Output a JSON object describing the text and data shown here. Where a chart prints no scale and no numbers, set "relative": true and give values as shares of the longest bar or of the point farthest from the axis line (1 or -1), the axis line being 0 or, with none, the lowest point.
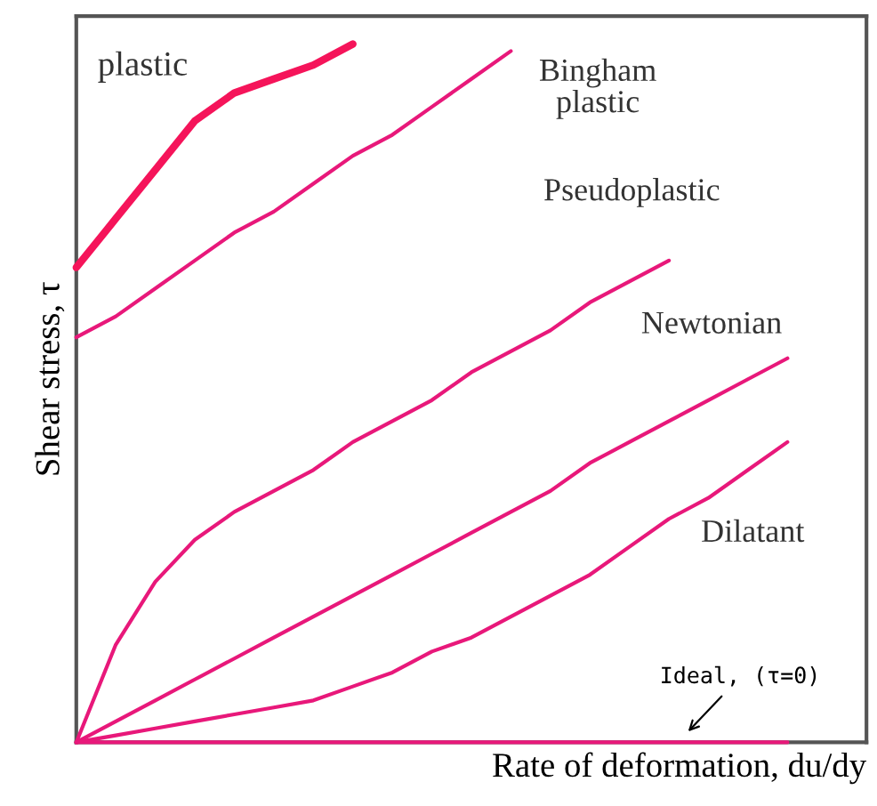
{
  "chart_data": {
    "type": "line",
    "relative": true,
    "xlabel": "Rate of deformation, du/dy",
    "ylabel": "Shear stress, τ",
    "tick_labels": false,
    "marker": "none",
    "line_style": "solid",
    "categories": [
      null,
      null,
      null,
      null,
      null,
      null,
      null,
      null,
      null,
      null,
      null,
      null,
      null,
      null,
      null,
      null,
      null,
      null,
      null,
      null,
      null
    ],
    "series": [
      {
        "name": "plastic",
        "color": "#f5145a",
        "values": [
          0.68,
          0.75,
          0.82,
          0.89,
          0.93,
          0.95,
          0.97,
          1.0,
          null,
          null,
          null,
          null,
          null,
          null,
          null,
          null,
          null,
          null,
          null,
          null,
          null
        ]
      },
      {
        "name": "Bingham\nplastic",
        "color": "#e8187a",
        "values": [
          0.58,
          0.61,
          0.65,
          0.69,
          0.73,
          0.76,
          0.8,
          0.84,
          0.87,
          0.91,
          0.95,
          0.99,
          null,
          null,
          null,
          null,
          null,
          null,
          null,
          null,
          null
        ]
      },
      {
        "name": "Pseudoplastic",
        "color": "#e8187a",
        "values": [
          0,
          0.14,
          0.23,
          0.29,
          0.33,
          0.36,
          0.39,
          0.43,
          0.46,
          0.49,
          0.53,
          0.56,
          0.59,
          0.63,
          0.66,
          0.69,
          null,
          null,
          null,
          null,
          null
        ]
      },
      {
        "name": "Newtonian",
        "color": "#e8187a",
        "values": [
          0,
          0.03,
          0.06,
          0.09,
          0.12,
          0.15,
          0.18,
          0.21,
          0.24,
          0.27,
          0.3,
          0.33,
          0.36,
          0.4,
          0.43,
          0.46,
          0.49,
          0.52,
          0.55,
          null,
          null
        ]
      },
      {
        "name": "Dilatant",
        "color": "#e8187a",
        "values": [
          0,
          0.01,
          0.02,
          0.03,
          0.04,
          0.05,
          0.06,
          0.08,
          0.1,
          0.13,
          0.15,
          0.18,
          0.21,
          0.24,
          0.28,
          0.32,
          0.35,
          0.39,
          0.43,
          null,
          null
        ]
      },
      {
        "name": "Ideal, (τ=0)",
        "color": "#e8187a",
        "values": [
          0,
          0,
          0,
          0,
          0,
          0,
          0,
          0,
          0,
          0,
          0,
          0,
          0,
          0,
          0,
          0,
          0,
          0,
          0,
          null,
          null
        ]
      }
    ]
  }
}
